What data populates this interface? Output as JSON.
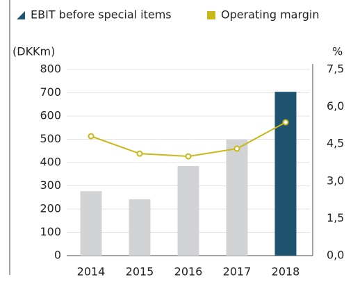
{
  "chart_data": {
    "type": "bar_line",
    "categories": [
      "2014",
      "2015",
      "2016",
      "2017",
      "2018"
    ],
    "series": [
      {
        "name": "EBIT before special items",
        "type": "bar",
        "color": "#1f5470",
        "colors": [
          "#d1d3d4",
          "#d1d3d4",
          "#d1d3d4",
          "#d1d3d4",
          "#1f5470"
        ],
        "values": [
          277,
          242,
          385,
          498,
          704
        ]
      },
      {
        "name": "Operating margin",
        "type": "line",
        "axis": "y2",
        "color": "#c9b81a",
        "values": [
          4.81,
          4.11,
          4.0,
          4.31,
          5.37
        ]
      }
    ],
    "ylabel": "(DKKm)",
    "y2label": "%",
    "ylim": [
      0,
      800
    ],
    "yticks": [
      0,
      100,
      200,
      300,
      400,
      500,
      600,
      700,
      800
    ],
    "y2lim": [
      0,
      7.5
    ],
    "y2ticks": [
      {
        "value": 0,
        "label": "0,0"
      },
      {
        "value": 1.5,
        "label": "1,5"
      },
      {
        "value": 3,
        "label": "3,0"
      },
      {
        "value": 4.5,
        "label": "4,5"
      },
      {
        "value": 6,
        "label": "6,0"
      },
      {
        "value": 7.5,
        "label": "7,5"
      }
    ],
    "grid": true
  }
}
